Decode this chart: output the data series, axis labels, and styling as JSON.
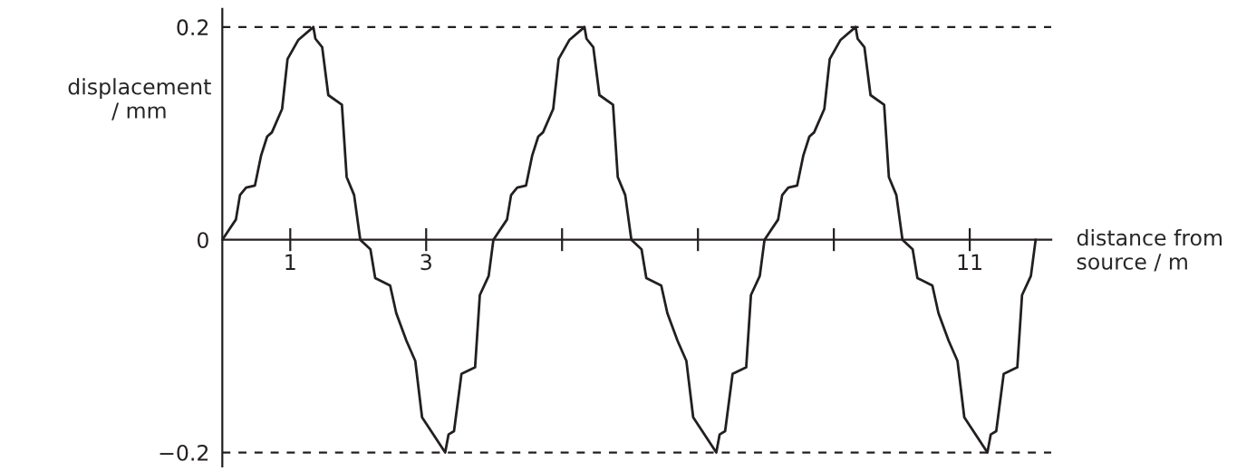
{
  "chart_data": {
    "type": "line",
    "xlabel": "distance from\nsource / m",
    "ylabel": "displacement\n/ mm",
    "x": [
      0,
      0.2,
      0.26,
      0.35,
      0.48,
      0.57,
      0.66,
      0.73,
      0.88,
      0.96,
      1.12,
      1.34,
      1.37,
      1.47,
      1.56,
      1.76,
      1.83,
      1.94,
      2.03,
      2.18,
      2.25,
      2.47,
      2.56,
      2.71,
      2.84,
      2.94,
      3.28,
      3.33,
      3.41,
      3.52,
      3.72,
      3.79,
      3.92,
      3.99,
      4.19,
      4.25,
      4.34,
      4.47,
      4.56,
      4.65,
      4.72,
      4.87,
      4.95,
      5.11,
      5.33,
      5.36,
      5.46,
      5.55,
      5.75,
      5.82,
      5.93,
      6.02,
      6.17,
      6.24,
      6.46,
      6.55,
      6.7,
      6.83,
      6.93,
      7.27,
      7.32,
      7.4,
      7.51,
      7.71,
      7.78,
      7.91,
      7.98,
      8.18,
      8.24,
      8.33,
      8.46,
      8.55,
      8.64,
      8.71,
      8.86,
      8.94,
      9.1,
      9.32,
      9.35,
      9.45,
      9.54,
      9.74,
      9.81,
      9.92,
      10.01,
      10.16,
      10.23,
      10.45,
      10.54,
      10.69,
      10.82,
      10.92,
      11.26,
      11.31,
      11.39,
      11.5,
      11.7,
      11.77,
      11.9,
      11.97
    ],
    "series": [
      {
        "color": "#231f20",
        "values": [
          0,
          0.019,
          0.042,
          0.049,
          0.051,
          0.079,
          0.097,
          0.101,
          0.123,
          0.17,
          0.188,
          0.2,
          0.189,
          0.181,
          0.136,
          0.127,
          0.059,
          0.042,
          0,
          -0.009,
          -0.036,
          -0.043,
          -0.069,
          -0.095,
          -0.114,
          -0.167,
          -0.2,
          -0.183,
          -0.18,
          -0.126,
          -0.12,
          -0.052,
          -0.034,
          0,
          0.019,
          0.042,
          0.049,
          0.051,
          0.079,
          0.097,
          0.101,
          0.123,
          0.17,
          0.188,
          0.2,
          0.189,
          0.181,
          0.136,
          0.127,
          0.059,
          0.042,
          0,
          -0.009,
          -0.036,
          -0.043,
          -0.069,
          -0.095,
          -0.114,
          -0.167,
          -0.2,
          -0.183,
          -0.18,
          -0.126,
          -0.12,
          -0.052,
          -0.034,
          0,
          0.019,
          0.042,
          0.049,
          0.051,
          0.079,
          0.097,
          0.101,
          0.123,
          0.17,
          0.188,
          0.2,
          0.189,
          0.181,
          0.136,
          0.127,
          0.059,
          0.042,
          0,
          -0.009,
          -0.036,
          -0.043,
          -0.069,
          -0.095,
          -0.114,
          -0.167,
          -0.2,
          -0.183,
          -0.18,
          -0.126,
          -0.12,
          -0.052,
          -0.034,
          0
        ]
      }
    ],
    "xlim": [
      0,
      12.2
    ],
    "ylim": [
      -0.213,
      0.217
    ],
    "xticks": [
      {
        "value": 1,
        "label": "1"
      },
      {
        "value": 3,
        "label": "3"
      },
      {
        "value": 5,
        "label": null
      },
      {
        "value": 7,
        "label": null
      },
      {
        "value": 9,
        "label": null
      },
      {
        "value": 11,
        "label": "11"
      }
    ],
    "yticks": [
      {
        "value": -0.2,
        "label": "−0.2"
      },
      0,
      0.2
    ],
    "ref_lines": [
      {
        "axis": "y",
        "value": 0.2,
        "color": "#231f20",
        "line_style": "dashed"
      },
      {
        "axis": "y",
        "value": -0.2,
        "color": "#231f20",
        "line_style": "dashed"
      }
    ],
    "grid": false,
    "legend": false,
    "marker": "none",
    "line_style": "solid"
  }
}
